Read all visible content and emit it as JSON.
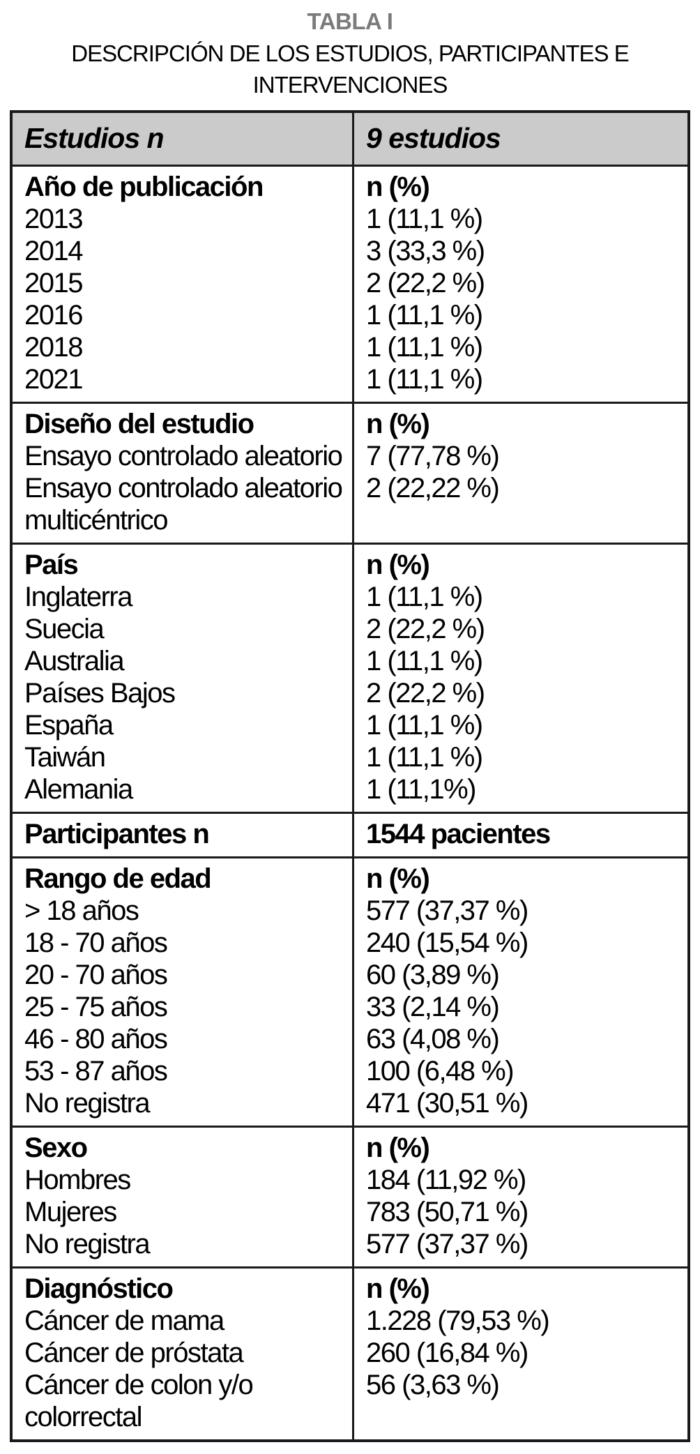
{
  "title": "TABLA I",
  "subtitle": "DESCRIPCIÓN DE LOS ESTUDIOS, PARTICIPANTES E INTERVENCIONES",
  "colors": {
    "title_gray": "#7b7b7b",
    "header_background": "#cbcbcb",
    "border_black": "#1a1a1a"
  },
  "table": {
    "header": {
      "left": "Estudios n",
      "right": "9 estudios"
    },
    "sections": [
      {
        "label": "Año de publicación",
        "value_header": "n (%)",
        "items": [
          "2013",
          "2014",
          "2015",
          "2016",
          "2018",
          "2021"
        ],
        "values": [
          "1 (11,1 %)",
          "3 (33,3 %)",
          "2 (22,2 %)",
          "1 (11,1 %)",
          "1 (11,1 %)",
          "1 (11,1 %)"
        ]
      },
      {
        "label": "Diseño del estudio",
        "value_header": "n (%)",
        "items": [
          "Ensayo controlado aleatorio",
          "Ensayo controlado aleatorio multicéntrico"
        ],
        "values": [
          "7 (77,78 %)",
          "2 (22,22 %)"
        ]
      },
      {
        "label": "País",
        "value_header": "n (%)",
        "items": [
          "Inglaterra",
          "Suecia",
          "Australia",
          "Países Bajos",
          "España",
          "Taiwán",
          "Alemania"
        ],
        "values": [
          "1 (11,1 %)",
          "2 (22,2 %)",
          "1 (11,1 %)",
          "2 (22,2 %)",
          "1 (11,1 %)",
          "1 (11,1 %)",
          "1 (11,1%)"
        ]
      },
      {
        "label": "Participantes n",
        "value_header": "1544 pacientes",
        "items": [],
        "values": []
      },
      {
        "label": "Rango de edad",
        "value_header": "n (%)",
        "items": [
          "> 18 años",
          "18 - 70 años",
          "20 - 70 años",
          "25 - 75 años",
          "46 - 80 años",
          "53 - 87 años",
          "No registra"
        ],
        "values": [
          "577 (37,37 %)",
          "240 (15,54 %)",
          "60 (3,89 %)",
          "33 (2,14 %)",
          "63 (4,08 %)",
          "100 (6,48 %)",
          "471 (30,51 %)"
        ]
      },
      {
        "label": "Sexo",
        "value_header": "n (%)",
        "items": [
          "Hombres",
          "Mujeres",
          "No registra"
        ],
        "values": [
          "184 (11,92 %)",
          "783 (50,71 %)",
          "577 (37,37 %)"
        ]
      },
      {
        "label": "Diagnóstico",
        "value_header": "n (%)",
        "items": [
          "Cáncer de mama",
          "Cáncer de próstata",
          "Cáncer de colon y/o colorrectal"
        ],
        "values": [
          "1.228 (79,53 %)",
          "260 (16,84 %)",
          "56 (3,63 %)"
        ]
      }
    ]
  }
}
